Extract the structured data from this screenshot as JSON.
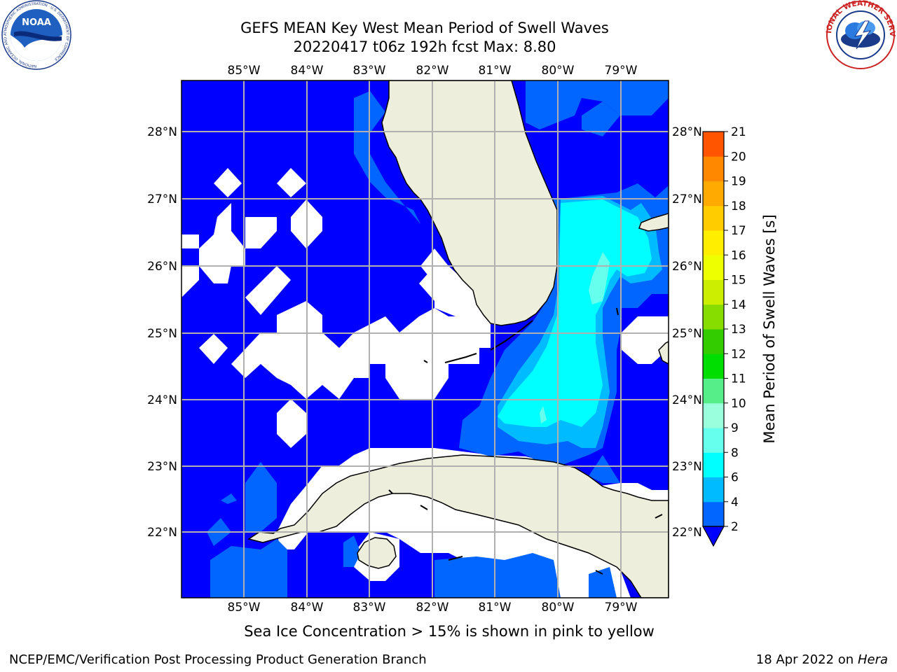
{
  "header": {
    "title_line1": "GEFS MEAN Key West Mean Period of Swell Waves",
    "title_line2": "20220417 t06z 192h fcst   Max: 8.80"
  },
  "logos": {
    "noaa_text": "NOAA",
    "noaa_ring_text": "NATIONAL OCEANIC AND ATMOSPHERIC ADMINISTRATION · U.S. DEPARTMENT OF COMMERCE",
    "nws_ring_text": "NATIONAL WEATHER SERVICE"
  },
  "map": {
    "lon_labels": [
      "85°W",
      "84°W",
      "83°W",
      "82°W",
      "81°W",
      "80°W",
      "79°W"
    ],
    "lat_labels": [
      "28°N",
      "27°N",
      "26°N",
      "25°N",
      "24°N",
      "23°N",
      "22°N"
    ],
    "colors": {
      "land": "#eeeedd",
      "no_data": "#ffffff",
      "grid": "#b0b0b0",
      "coast": "#000000"
    }
  },
  "colorbar": {
    "label": "Mean Period of Swell Waves [s]",
    "ticks": [
      "2",
      "4",
      "6",
      "8",
      "9",
      "10",
      "11",
      "12",
      "13",
      "14",
      "15",
      "16",
      "17",
      "18",
      "19",
      "20",
      "21"
    ],
    "colors": [
      "#0066ff",
      "#00bbff",
      "#00ffff",
      "#66ffee",
      "#99ffdd",
      "#55ee88",
      "#00dd00",
      "#33cc00",
      "#88dd00",
      "#ccee00",
      "#eeff00",
      "#ffee00",
      "#ffcc00",
      "#ffaa00",
      "#ff8800",
      "#ff5500",
      "#ff2200",
      "#ff0000"
    ],
    "under_color": "#0000ff"
  },
  "caption": "Sea Ice Concentration > 15% is shown in pink to yellow",
  "footer": {
    "left": "NCEP/EMC/Verification Post Processing Product Generation Branch",
    "right_date": "18 Apr 2022 on ",
    "right_host": "Hera"
  }
}
